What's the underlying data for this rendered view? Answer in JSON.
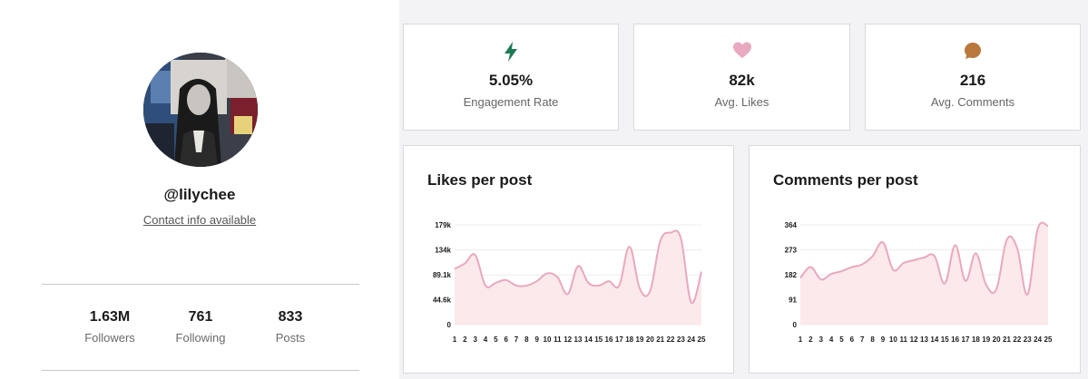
{
  "profile": {
    "username": "@lilychee",
    "contact_link": "Contact info available",
    "stats": [
      {
        "value": "1.63M",
        "label": "Followers"
      },
      {
        "value": "761",
        "label": "Following"
      },
      {
        "value": "833",
        "label": "Posts"
      }
    ]
  },
  "metrics": [
    {
      "icon": "bolt-icon",
      "color": "#1e7a55",
      "value": "5.05%",
      "label": "Engagement Rate"
    },
    {
      "icon": "heart-icon",
      "color": "#e9a9c1",
      "value": "82k",
      "label": "Avg. Likes"
    },
    {
      "icon": "comment-icon",
      "color": "#b8773c",
      "value": "216",
      "label": "Avg. Comments"
    }
  ],
  "colors": {
    "line": "#e8a9be",
    "fill": "#fbe9ec"
  },
  "chart_data": [
    {
      "type": "area",
      "title": "Likes per post",
      "x": [
        1,
        2,
        3,
        4,
        5,
        6,
        7,
        8,
        9,
        10,
        11,
        12,
        13,
        14,
        15,
        16,
        17,
        18,
        19,
        20,
        21,
        22,
        23,
        24,
        25
      ],
      "x_tick_labels": [
        "1",
        "2",
        "3",
        "4",
        "5",
        "6",
        "7",
        "8",
        "9",
        "10",
        "11",
        "12",
        "13",
        "14",
        "15",
        "16",
        "17",
        "18",
        "19",
        "20",
        "21",
        "22",
        "23",
        "24",
        "25"
      ],
      "y_tick_labels": [
        "179k",
        "134k",
        "89.1k",
        "44.6k",
        "0"
      ],
      "y_ticks": [
        179000,
        134000,
        89100,
        44600,
        0
      ],
      "ylim": [
        0,
        179000
      ],
      "values": [
        100000,
        110000,
        125000,
        70000,
        75000,
        80000,
        70000,
        70000,
        78000,
        92000,
        85000,
        55000,
        105000,
        75000,
        70000,
        78000,
        70000,
        140000,
        65000,
        60000,
        150000,
        165000,
        155000,
        40000,
        95000
      ],
      "grid": true
    },
    {
      "type": "area",
      "title": "Comments per post",
      "x": [
        1,
        2,
        3,
        4,
        5,
        6,
        7,
        8,
        9,
        10,
        11,
        12,
        13,
        14,
        15,
        16,
        17,
        18,
        19,
        20,
        21,
        22,
        23,
        24,
        25
      ],
      "x_tick_labels": [
        "1",
        "2",
        "3",
        "4",
        "5",
        "6",
        "7",
        "8",
        "9",
        "10",
        "11",
        "12",
        "13",
        "14",
        "15",
        "16",
        "17",
        "18",
        "19",
        "20",
        "21",
        "22",
        "23",
        "24",
        "25"
      ],
      "y_tick_labels": [
        "364",
        "273",
        "182",
        "91",
        "0"
      ],
      "y_ticks": [
        364,
        273,
        182,
        91,
        0
      ],
      "ylim": [
        0,
        364
      ],
      "values": [
        170,
        210,
        165,
        185,
        195,
        210,
        220,
        250,
        300,
        200,
        225,
        235,
        245,
        250,
        150,
        290,
        160,
        260,
        145,
        130,
        310,
        280,
        110,
        350,
        360
      ],
      "grid": true
    }
  ]
}
